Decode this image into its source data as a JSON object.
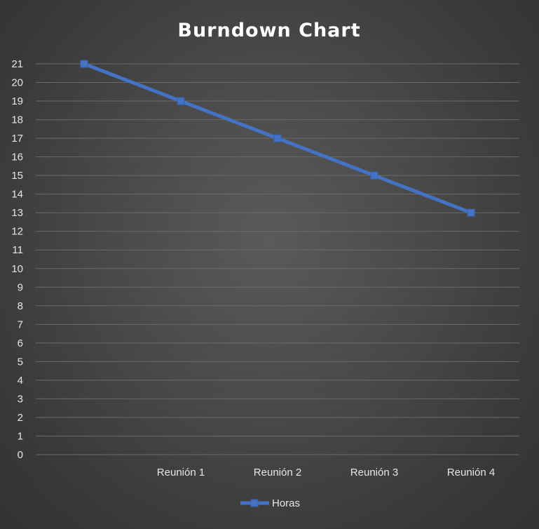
{
  "chart_data": {
    "type": "line",
    "title": "Burndown Chart",
    "xlabel": "",
    "ylabel": "",
    "categories": [
      "",
      "Reunión 1",
      "Reunión 2",
      "Reunión 3",
      "Reunión 4"
    ],
    "series": [
      {
        "name": "Horas",
        "values": [
          21,
          19,
          17,
          15,
          13
        ],
        "color": "#4472c4"
      }
    ],
    "ylim": [
      0,
      21
    ],
    "ytick_step": 1,
    "grid": true,
    "legend_position": "bottom"
  }
}
